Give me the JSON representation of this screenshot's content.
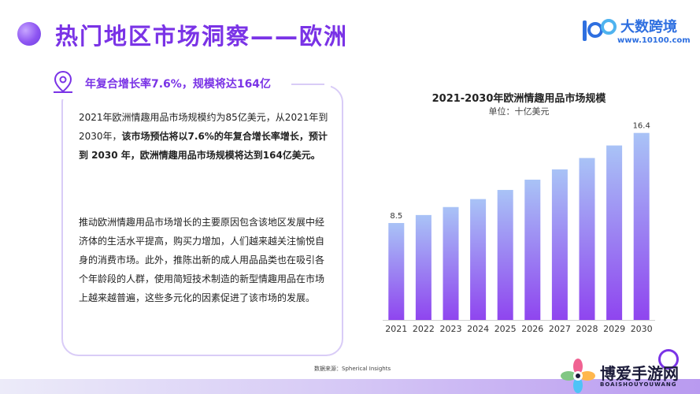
{
  "header": {
    "title": "热门地区市场洞察——欧洲"
  },
  "logo": {
    "mark": "100",
    "name": "大数跨境",
    "url": "www.10100.com"
  },
  "panel": {
    "highlight": "年复合增长率7.6%，规模将达164亿",
    "para1_normal": "2021年欧洲情趣用品市场规模约为85亿美元，从2021年到2030年，",
    "para1_bold": "该市场预估将以7.6%的年复合增长率增长，预计到 2030 年，欧洲情趣用品市场规模将达到164亿美元。",
    "para2": "推动欧洲情趣用品市场增长的主要原因包含该地区发展中经济体的生活水平提高，购买力增加，人们越来越关注愉悦自身的消费市场。此外，推陈出新的成人用品品类也在吸引各个年龄段的人群，使用简短技术制造的新型情趣用品在市场上越来越普遍，这些多元化的因素促进了该市场的发展。"
  },
  "chart_data": {
    "type": "bar",
    "title": "2021-2030年欧洲情趣用品市场规模",
    "subtitle": "单位：十亿美元",
    "categories": [
      "2021",
      "2022",
      "2023",
      "2024",
      "2025",
      "2026",
      "2027",
      "2028",
      "2029",
      "2030"
    ],
    "values": [
      8.5,
      9.2,
      9.9,
      10.6,
      11.4,
      12.3,
      13.2,
      14.2,
      15.3,
      16.4
    ],
    "value_labels": [
      "8.5",
      "",
      "",
      "",
      "",
      "",
      "",
      "",
      "",
      "16.4"
    ],
    "ylim": [
      0,
      17
    ],
    "grid": false,
    "colors": {
      "bar_top": "#a9c3f6",
      "bar_bottom": "#8f45ef"
    }
  },
  "footer": {
    "source": "数据来源：Spherical Insights",
    "watermark_name": "博爱手游网",
    "watermark_sub": "BOAISHOUYOUWANG"
  }
}
